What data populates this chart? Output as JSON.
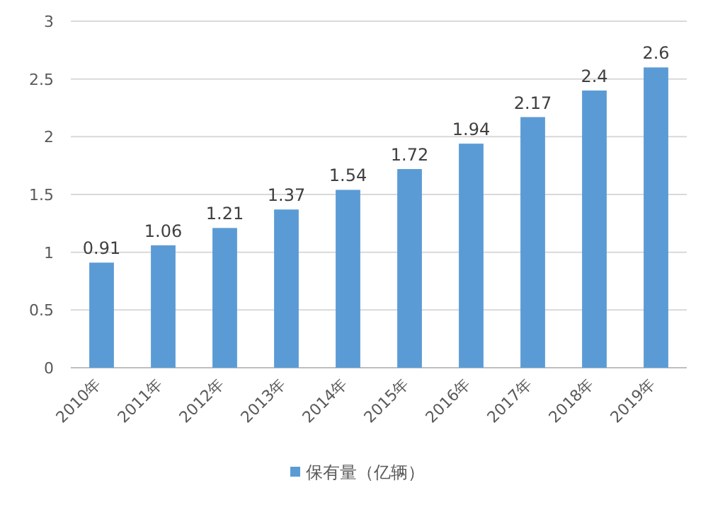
{
  "chart_data": {
    "type": "bar",
    "categories": [
      "2010年",
      "2011年",
      "2012年",
      "2013年",
      "2014年",
      "2015年",
      "2016年",
      "2017年",
      "2018年",
      "2019年"
    ],
    "series": [
      {
        "name": "保有量（亿辆）",
        "color": "#5b9bd5",
        "values": [
          0.91,
          1.06,
          1.21,
          1.37,
          1.54,
          1.72,
          1.94,
          2.17,
          2.4,
          2.6
        ]
      }
    ],
    "ylim": [
      0,
      3
    ],
    "yticks": [
      0,
      0.5,
      1,
      1.5,
      2,
      2.5,
      3
    ],
    "grid": "y",
    "data_labels": true,
    "legend": "bottom"
  }
}
